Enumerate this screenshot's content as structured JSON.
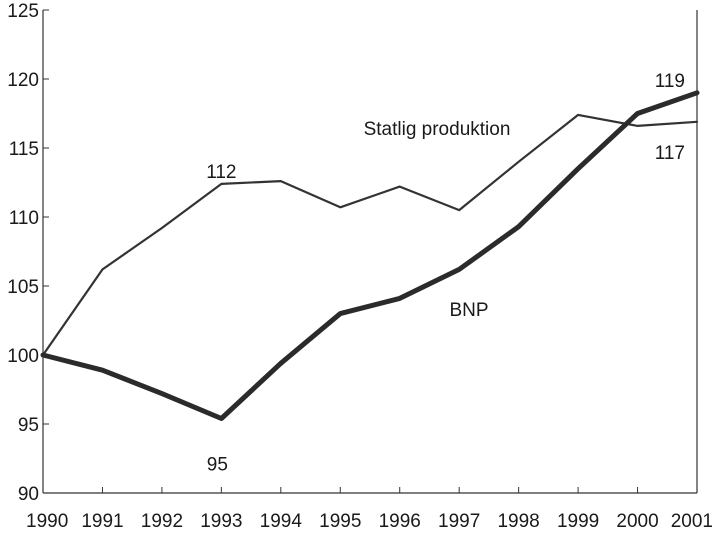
{
  "chart_data": {
    "type": "line",
    "title": "",
    "xlabel": "",
    "ylabel": "",
    "x": [
      "1990",
      "1991",
      "1992",
      "1993",
      "1994",
      "1995",
      "1996",
      "1997",
      "1998",
      "1999",
      "2000",
      "2001"
    ],
    "ylim": [
      90,
      125
    ],
    "yticks": [
      "90",
      "95",
      "100",
      "105",
      "110",
      "115",
      "120",
      "125"
    ],
    "grid": false,
    "series": [
      {
        "name": "Statlig produktion",
        "color": "#333333",
        "style": "thin",
        "values": [
          100,
          106.2,
          109.2,
          112.4,
          112.6,
          110.7,
          112.2,
          110.5,
          114.0,
          117.4,
          116.6,
          116.9
        ]
      },
      {
        "name": "BNP",
        "color": "#2b2b2b",
        "style": "thick",
        "values": [
          100,
          98.9,
          97.2,
          95.4,
          99.4,
          103.0,
          104.1,
          106.2,
          109.3,
          113.5,
          117.5,
          119.0
        ]
      }
    ],
    "annotations": [
      {
        "text": "112",
        "x": "1993",
        "y": 112.4,
        "position": "above"
      },
      {
        "text": "95",
        "x": "1993",
        "y": 95.4,
        "position": "below"
      },
      {
        "text": "119",
        "x": "2001",
        "y": 119.0,
        "position": "above-left"
      },
      {
        "text": "117",
        "x": "2001",
        "y": 116.9,
        "position": "below-left"
      }
    ],
    "series_labels": [
      {
        "text": "Statlig produktion",
        "near_x": "1997",
        "near_y": 116
      },
      {
        "text": "BNP",
        "near_x": "1997",
        "near_y": 103
      }
    ]
  }
}
